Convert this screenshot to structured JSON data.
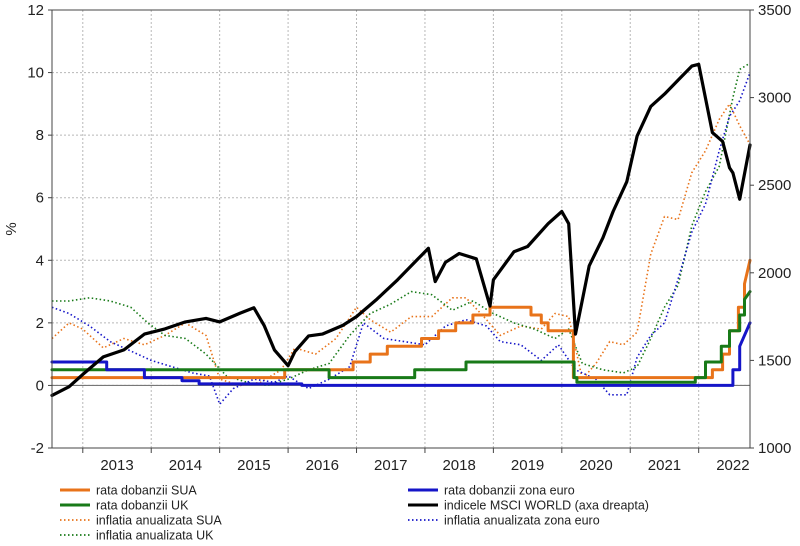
{
  "chart_data": {
    "type": "line",
    "ylabel": "%",
    "y_left_range": [
      -2,
      12
    ],
    "y_left_ticks": [
      "-2",
      "0",
      "2",
      "4",
      "6",
      "8",
      "10",
      "12"
    ],
    "y_right_range": [
      1000,
      3500
    ],
    "y_right_ticks": [
      "1000",
      "1500",
      "2000",
      "2500",
      "3000",
      "3500"
    ],
    "x_range": [
      2012.55,
      2022.75
    ],
    "x_tick_labels": [
      "2013",
      "2014",
      "2015",
      "2016",
      "2017",
      "2018",
      "2019",
      "2020",
      "2021",
      "2022"
    ],
    "grid": true,
    "legend_position": "bottom",
    "series": [
      {
        "name": "rata dobanzii SUA",
        "axis": "left",
        "color": "#e8731a",
        "style": "solid",
        "width": 3,
        "x": [
          2012.55,
          2015.95,
          2015.95,
          2016.95,
          2016.95,
          2017.2,
          2017.2,
          2017.45,
          2017.45,
          2017.95,
          2017.95,
          2018.2,
          2018.2,
          2018.45,
          2018.45,
          2018.7,
          2018.7,
          2018.95,
          2018.95,
          2019.55,
          2019.55,
          2019.7,
          2019.7,
          2019.8,
          2019.8,
          2020.17,
          2020.17,
          2020.25,
          2020.25,
          2022.2,
          2022.2,
          2022.35,
          2022.35,
          2022.45,
          2022.45,
          2022.58,
          2022.58,
          2022.67,
          2022.67,
          2022.75
        ],
        "y": [
          0.25,
          0.25,
          0.5,
          0.5,
          0.75,
          0.75,
          1.0,
          1.0,
          1.25,
          1.25,
          1.5,
          1.5,
          1.75,
          1.75,
          2.0,
          2.0,
          2.25,
          2.25,
          2.5,
          2.5,
          2.25,
          2.25,
          2.0,
          2.0,
          1.75,
          1.75,
          0.25,
          0.25,
          0.25,
          0.25,
          0.5,
          0.5,
          1.0,
          1.0,
          1.75,
          1.75,
          2.5,
          2.5,
          3.25,
          4.0
        ]
      },
      {
        "name": "rata dobanzii UK",
        "axis": "left",
        "color": "#187a18",
        "style": "solid",
        "width": 3,
        "x": [
          2012.55,
          2016.6,
          2016.6,
          2017.85,
          2017.85,
          2018.6,
          2018.6,
          2020.18,
          2020.18,
          2020.22,
          2020.22,
          2021.95,
          2021.95,
          2022.1,
          2022.1,
          2022.33,
          2022.33,
          2022.45,
          2022.45,
          2022.6,
          2022.6,
          2022.67,
          2022.67,
          2022.75
        ],
        "y": [
          0.5,
          0.5,
          0.25,
          0.25,
          0.5,
          0.5,
          0.75,
          0.75,
          0.25,
          0.25,
          0.1,
          0.1,
          0.25,
          0.25,
          0.75,
          0.75,
          1.25,
          1.25,
          1.75,
          1.75,
          2.25,
          2.25,
          2.75,
          3.0
        ]
      },
      {
        "name": "rata dobanzii zona euro",
        "axis": "left",
        "color": "#1515c8",
        "style": "solid",
        "width": 3,
        "x": [
          2012.55,
          2012.95,
          2012.95,
          2013.35,
          2013.35,
          2013.9,
          2013.9,
          2014.45,
          2014.45,
          2014.7,
          2014.7,
          2015.45,
          2015.45,
          2016.2,
          2016.2,
          2022.5,
          2022.5,
          2022.6,
          2022.6,
          2022.75
        ],
        "y": [
          0.75,
          0.75,
          0.75,
          0.75,
          0.5,
          0.5,
          0.25,
          0.25,
          0.15,
          0.15,
          0.05,
          0.05,
          0.05,
          0.05,
          0.0,
          0.0,
          0.5,
          0.5,
          1.25,
          2.0
        ]
      },
      {
        "name": "inflatia anualizata SUA",
        "axis": "left",
        "color": "#e8731a",
        "style": "dotted",
        "width": 1.6,
        "x": [
          2012.55,
          2012.8,
          2013.0,
          2013.3,
          2013.6,
          2013.9,
          2014.2,
          2014.5,
          2014.8,
          2015.0,
          2015.3,
          2015.6,
          2015.9,
          2016.1,
          2016.4,
          2016.7,
          2017.0,
          2017.2,
          2017.5,
          2017.8,
          2018.1,
          2018.4,
          2018.6,
          2018.9,
          2019.1,
          2019.4,
          2019.7,
          2019.9,
          2020.1,
          2020.3,
          2020.5,
          2020.7,
          2020.9,
          2021.1,
          2021.3,
          2021.5,
          2021.7,
          2021.9,
          2022.1,
          2022.3,
          2022.45,
          2022.6,
          2022.75
        ],
        "y": [
          1.5,
          2.0,
          1.8,
          1.2,
          1.5,
          1.3,
          1.6,
          2.0,
          1.6,
          0.2,
          0.0,
          0.1,
          0.5,
          1.2,
          1.0,
          1.5,
          2.5,
          2.1,
          1.7,
          2.2,
          2.2,
          2.8,
          2.8,
          2.1,
          1.6,
          1.9,
          1.8,
          2.3,
          2.2,
          0.2,
          0.7,
          1.4,
          1.3,
          1.7,
          4.2,
          5.4,
          5.3,
          6.8,
          7.5,
          8.5,
          9.0,
          8.3,
          7.7
        ]
      },
      {
        "name": "inflatia anualizata UK",
        "axis": "left",
        "color": "#187a18",
        "style": "dotted",
        "width": 1.6,
        "x": [
          2012.55,
          2012.8,
          2013.1,
          2013.4,
          2013.7,
          2013.95,
          2014.2,
          2014.5,
          2014.8,
          2015.1,
          2015.4,
          2015.7,
          2016.0,
          2016.3,
          2016.6,
          2016.9,
          2017.2,
          2017.5,
          2017.8,
          2018.1,
          2018.4,
          2018.7,
          2019.0,
          2019.3,
          2019.6,
          2019.9,
          2020.1,
          2020.3,
          2020.6,
          2020.9,
          2021.1,
          2021.3,
          2021.5,
          2021.7,
          2021.9,
          2022.1,
          2022.3,
          2022.5,
          2022.6,
          2022.75
        ],
        "y": [
          2.7,
          2.7,
          2.8,
          2.7,
          2.5,
          2.0,
          1.6,
          1.5,
          1.0,
          0.3,
          0.1,
          0.0,
          0.2,
          0.5,
          0.7,
          1.6,
          2.3,
          2.6,
          3.0,
          2.9,
          2.4,
          2.7,
          2.3,
          2.0,
          1.8,
          1.5,
          1.8,
          0.7,
          0.5,
          0.4,
          0.6,
          1.5,
          2.5,
          3.2,
          5.1,
          6.2,
          7.0,
          9.2,
          10.1,
          10.3
        ]
      },
      {
        "name": "inflatia anualizata zona euro",
        "axis": "left",
        "color": "#1515c8",
        "style": "dotted",
        "width": 1.6,
        "x": [
          2012.55,
          2012.8,
          2013.1,
          2013.4,
          2013.7,
          2014.0,
          2014.3,
          2014.6,
          2014.85,
          2015.0,
          2015.2,
          2015.5,
          2015.8,
          2016.0,
          2016.3,
          2016.6,
          2016.9,
          2017.1,
          2017.4,
          2017.7,
          2018.0,
          2018.3,
          2018.6,
          2018.9,
          2019.1,
          2019.4,
          2019.7,
          2019.95,
          2020.2,
          2020.5,
          2020.7,
          2020.95,
          2021.1,
          2021.3,
          2021.5,
          2021.7,
          2021.9,
          2022.1,
          2022.3,
          2022.45,
          2022.6,
          2022.75
        ],
        "y": [
          2.5,
          2.3,
          1.9,
          1.4,
          1.1,
          0.8,
          0.6,
          0.4,
          0.3,
          -0.6,
          -0.1,
          0.2,
          0.1,
          0.3,
          -0.1,
          0.2,
          0.6,
          2.0,
          1.5,
          1.4,
          1.3,
          1.9,
          2.1,
          1.9,
          1.4,
          1.3,
          0.8,
          1.3,
          0.5,
          0.2,
          -0.3,
          -0.3,
          0.9,
          1.6,
          2.0,
          3.4,
          4.9,
          5.8,
          7.5,
          8.6,
          9.1,
          10.0
        ]
      },
      {
        "name": "indicele MSCI WORLD (axa dreapta)",
        "axis": "right",
        "color": "#000000",
        "style": "solid",
        "width": 3.2,
        "x": [
          2012.55,
          2012.8,
          2013.0,
          2013.3,
          2013.6,
          2013.9,
          2014.2,
          2014.5,
          2014.8,
          2015.0,
          2015.3,
          2015.5,
          2015.65,
          2015.8,
          2016.0,
          2016.1,
          2016.3,
          2016.5,
          2016.8,
          2017.0,
          2017.3,
          2017.6,
          2017.9,
          2018.05,
          2018.15,
          2018.3,
          2018.5,
          2018.75,
          2018.95,
          2019.0,
          2019.3,
          2019.5,
          2019.8,
          2020.0,
          2020.1,
          2020.2,
          2020.4,
          2020.6,
          2020.75,
          2020.95,
          2021.1,
          2021.3,
          2021.5,
          2021.7,
          2021.9,
          2022.0,
          2022.2,
          2022.35,
          2022.45,
          2022.5,
          2022.6,
          2022.75
        ],
        "y": [
          1300,
          1350,
          1420,
          1520,
          1560,
          1650,
          1680,
          1720,
          1740,
          1720,
          1770,
          1800,
          1700,
          1560,
          1470,
          1550,
          1640,
          1650,
          1700,
          1750,
          1850,
          1960,
          2080,
          2140,
          1950,
          2060,
          2110,
          2080,
          1810,
          1960,
          2120,
          2150,
          2280,
          2350,
          2280,
          1650,
          2040,
          2200,
          2350,
          2520,
          2780,
          2950,
          3020,
          3100,
          3180,
          3190,
          2800,
          2750,
          2600,
          2570,
          2420,
          2730
        ]
      }
    ]
  }
}
